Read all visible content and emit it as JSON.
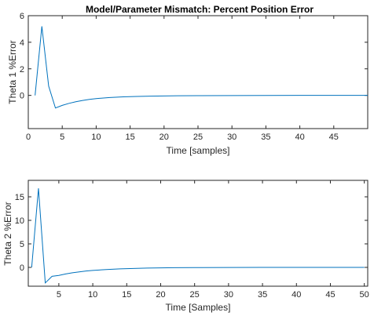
{
  "colors": {
    "line": "#0072bd",
    "axes": "#262626",
    "background": "#ffffff"
  },
  "chart_data": [
    {
      "type": "line",
      "title": "Model/Parameter Mismatch: Percent Position Error",
      "xlabel": "Time [samples]",
      "ylabel": "Theta 1 %Error",
      "xlim": [
        0,
        50
      ],
      "ylim": [
        -2.5,
        6
      ],
      "xticks": [
        0,
        5,
        10,
        15,
        20,
        25,
        30,
        35,
        40,
        45
      ],
      "yticks": [
        0,
        2,
        4,
        6
      ],
      "grid": false,
      "series": [
        {
          "x": [
            1,
            2,
            3,
            4,
            5,
            6,
            7,
            8,
            9,
            10,
            12,
            14,
            16,
            18,
            20,
            22,
            25,
            30,
            35,
            40,
            45,
            50
          ],
          "values": [
            0,
            5.2,
            0.7,
            -0.95,
            -0.75,
            -0.6,
            -0.48,
            -0.38,
            -0.3,
            -0.24,
            -0.16,
            -0.11,
            -0.08,
            -0.06,
            -0.04,
            -0.03,
            -0.02,
            -0.01,
            -0.005,
            0,
            0,
            0
          ]
        }
      ]
    },
    {
      "type": "line",
      "title": "",
      "xlabel": "Time [Samples]",
      "ylabel": "Theta 2 %Error",
      "xlim": [
        0.5,
        50.5
      ],
      "ylim": [
        -4,
        18.5
      ],
      "xticks": [
        5,
        10,
        15,
        20,
        25,
        30,
        35,
        40,
        45,
        50
      ],
      "yticks": [
        0,
        5,
        10,
        15
      ],
      "grid": false,
      "series": [
        {
          "x": [
            1,
            2,
            3,
            4,
            5,
            6,
            7,
            8,
            9,
            10,
            12,
            14,
            16,
            18,
            20,
            22,
            25,
            30,
            35,
            40,
            45,
            50
          ],
          "values": [
            0,
            16.8,
            -3.3,
            -1.9,
            -1.7,
            -1.4,
            -1.15,
            -0.95,
            -0.78,
            -0.65,
            -0.45,
            -0.32,
            -0.22,
            -0.15,
            -0.1,
            -0.07,
            -0.04,
            -0.02,
            -0.01,
            0,
            0,
            0
          ]
        }
      ]
    }
  ]
}
